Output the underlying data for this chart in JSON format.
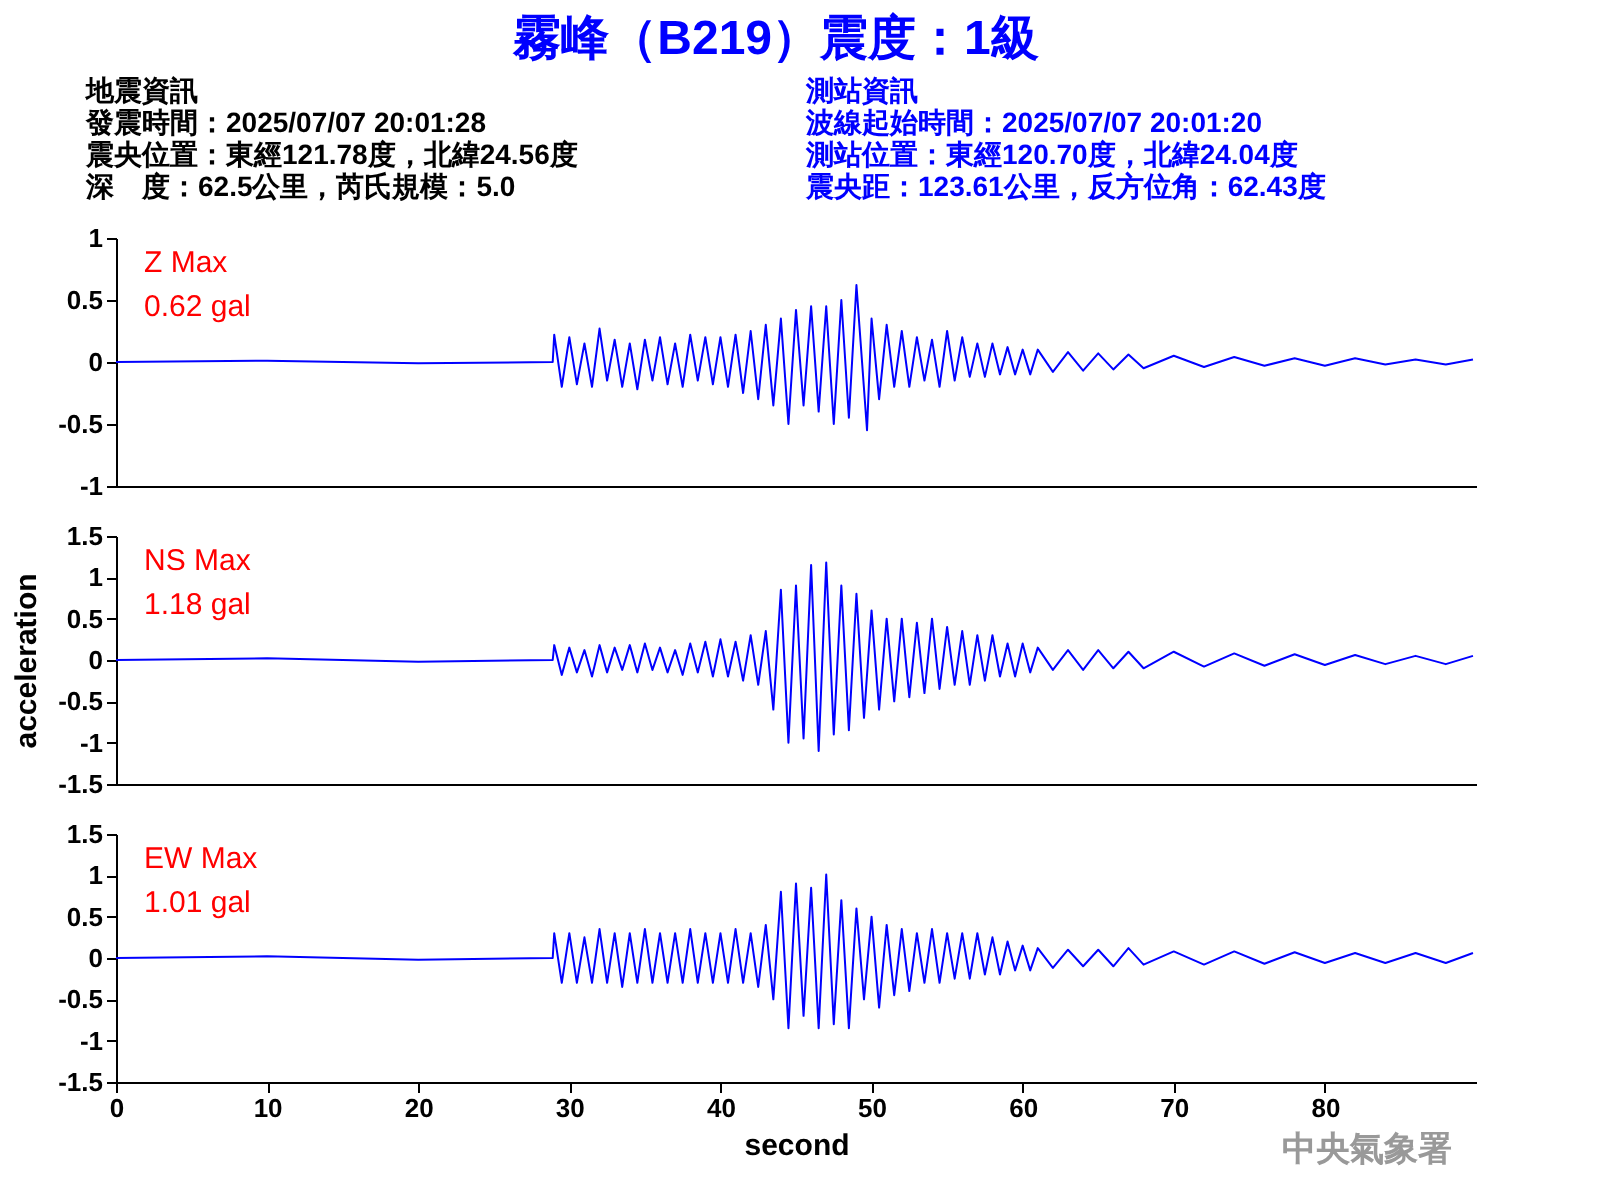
{
  "chart_data": [
    {
      "type": "other",
      "title": "霧峰（B219）震度：1級",
      "annotations": [
        "地震資訊",
        "發震時間：2025/07/07 20:01:28",
        "震央位置：東經121.78度，北緯24.56度",
        "深　度：62.5公里，芮氏規模：5.0",
        "測站資訊",
        "波線起始時間：2025/07/07 20:01:20",
        "測站位置：東經120.70度，北緯24.04度",
        "震央距：123.61公里，反方位角：62.43度"
      ]
    },
    {
      "type": "line",
      "annotations": [
        "Z Max",
        "0.62 gal"
      ],
      "xlim": [
        0,
        90
      ],
      "ylim": [
        -1,
        1
      ],
      "yticks": [
        -1,
        -0.5,
        0,
        0.5,
        1
      ],
      "tick_labels": "y",
      "grid": false,
      "x": [
        0,
        10,
        20,
        28.9,
        29,
        29.5,
        30,
        30.5,
        31,
        31.5,
        32,
        32.5,
        33,
        33.5,
        34,
        34.5,
        35,
        35.5,
        36,
        36.5,
        37,
        37.5,
        38,
        38.5,
        39,
        39.5,
        40,
        40.5,
        41,
        41.5,
        42,
        42.5,
        43,
        43.5,
        44,
        44.5,
        45,
        45.5,
        46,
        46.5,
        47,
        47.5,
        48,
        48.5,
        49,
        49.7,
        50,
        50.5,
        51,
        51.5,
        52,
        52.5,
        53,
        53.5,
        54,
        54.5,
        55,
        55.5,
        56,
        56.5,
        57,
        57.5,
        58,
        58.5,
        59,
        59.5,
        60,
        60.5,
        61,
        62,
        63,
        64,
        65,
        66,
        67,
        68,
        70,
        72,
        74,
        76,
        78,
        80,
        82,
        84,
        86,
        88,
        89.8
      ],
      "series": [
        {
          "color": "#0000ff",
          "values": [
            0,
            0.01,
            -0.01,
            0,
            0.22,
            -0.2,
            0.2,
            -0.18,
            0.15,
            -0.2,
            0.27,
            -0.15,
            0.18,
            -0.2,
            0.15,
            -0.22,
            0.18,
            -0.15,
            0.2,
            -0.18,
            0.15,
            -0.2,
            0.22,
            -0.15,
            0.2,
            -0.18,
            0.2,
            -0.2,
            0.22,
            -0.25,
            0.25,
            -0.3,
            0.3,
            -0.35,
            0.35,
            -0.5,
            0.42,
            -0.35,
            0.45,
            -0.4,
            0.45,
            -0.5,
            0.5,
            -0.45,
            0.62,
            -0.55,
            0.35,
            -0.3,
            0.3,
            -0.2,
            0.25,
            -0.2,
            0.2,
            -0.15,
            0.18,
            -0.2,
            0.25,
            -0.15,
            0.2,
            -0.12,
            0.15,
            -0.12,
            0.15,
            -0.1,
            0.12,
            -0.1,
            0.1,
            -0.1,
            0.1,
            -0.08,
            0.08,
            -0.07,
            0.07,
            -0.06,
            0.06,
            -0.05,
            0.05,
            -0.04,
            0.04,
            -0.03,
            0.03,
            -0.03,
            0.03,
            -0.02,
            0.02,
            -0.02,
            0.02
          ]
        }
      ]
    },
    {
      "type": "line",
      "ylabel": "acceleration",
      "annotations": [
        "NS Max",
        "1.18 gal"
      ],
      "xlim": [
        0,
        90
      ],
      "ylim": [
        -1.5,
        1.5
      ],
      "yticks": [
        -1.5,
        -1,
        -0.5,
        0,
        0.5,
        1,
        1.5
      ],
      "tick_labels": "y",
      "grid": false,
      "x": [
        0,
        10,
        20,
        28.9,
        29,
        29.5,
        30,
        30.5,
        31,
        31.5,
        32,
        32.5,
        33,
        33.5,
        34,
        34.5,
        35,
        35.5,
        36,
        36.5,
        37,
        37.5,
        38,
        38.5,
        39,
        39.5,
        40,
        40.5,
        41,
        41.5,
        42,
        42.5,
        43,
        43.5,
        44,
        44.5,
        45,
        45.5,
        46,
        46.5,
        47,
        47.5,
        48,
        48.5,
        49,
        49.5,
        50,
        50.5,
        51,
        51.5,
        52,
        52.5,
        53,
        53.5,
        54,
        54.5,
        55,
        55.5,
        56,
        56.5,
        57,
        57.5,
        58,
        58.5,
        59,
        59.5,
        60,
        60.5,
        61,
        62,
        63,
        64,
        65,
        66,
        67,
        68,
        70,
        72,
        74,
        76,
        78,
        80,
        82,
        84,
        86,
        88,
        89.8
      ],
      "series": [
        {
          "color": "#0000ff",
          "values": [
            0,
            0.02,
            -0.02,
            0,
            0.18,
            -0.18,
            0.15,
            -0.15,
            0.12,
            -0.2,
            0.18,
            -0.15,
            0.15,
            -0.12,
            0.18,
            -0.15,
            0.2,
            -0.12,
            0.15,
            -0.15,
            0.12,
            -0.18,
            0.2,
            -0.15,
            0.22,
            -0.2,
            0.25,
            -0.2,
            0.22,
            -0.25,
            0.3,
            -0.3,
            0.35,
            -0.6,
            0.85,
            -1.0,
            0.9,
            -0.95,
            1.15,
            -1.1,
            1.18,
            -0.9,
            0.9,
            -0.85,
            0.8,
            -0.7,
            0.6,
            -0.6,
            0.5,
            -0.5,
            0.5,
            -0.45,
            0.45,
            -0.4,
            0.5,
            -0.35,
            0.4,
            -0.3,
            0.35,
            -0.3,
            0.3,
            -0.25,
            0.3,
            -0.2,
            0.2,
            -0.2,
            0.2,
            -0.15,
            0.15,
            -0.12,
            0.12,
            -0.12,
            0.12,
            -0.1,
            0.1,
            -0.1,
            0.1,
            -0.08,
            0.08,
            -0.07,
            0.07,
            -0.06,
            0.06,
            -0.05,
            0.05,
            -0.05,
            0.05
          ]
        }
      ]
    },
    {
      "type": "line",
      "xlabel": "second",
      "annotations": [
        "EW Max",
        "1.01 gal",
        "中央氣象署"
      ],
      "xlim": [
        0,
        90
      ],
      "xticks": [
        0,
        10,
        20,
        30,
        40,
        50,
        60,
        70,
        80
      ],
      "ylim": [
        -1.5,
        1.5
      ],
      "yticks": [
        -1.5,
        -1,
        -0.5,
        0,
        0.5,
        1,
        1.5
      ],
      "grid": false,
      "x": [
        0,
        10,
        20,
        28.9,
        29,
        29.5,
        30,
        30.5,
        31,
        31.5,
        32,
        32.5,
        33,
        33.5,
        34,
        34.5,
        35,
        35.5,
        36,
        36.5,
        37,
        37.5,
        38,
        38.5,
        39,
        39.5,
        40,
        40.5,
        41,
        41.5,
        42,
        42.5,
        43,
        43.5,
        44,
        44.5,
        45,
        45.5,
        46,
        46.5,
        47,
        47.5,
        48,
        48.5,
        49,
        49.5,
        50,
        50.5,
        51,
        51.5,
        52,
        52.5,
        53,
        53.5,
        54,
        54.5,
        55,
        55.5,
        56,
        56.5,
        57,
        57.5,
        58,
        58.5,
        59,
        59.5,
        60,
        60.5,
        61,
        62,
        63,
        64,
        65,
        66,
        67,
        68,
        70,
        72,
        74,
        76,
        78,
        80,
        82,
        84,
        86,
        88,
        89.8
      ],
      "series": [
        {
          "color": "#0000ff",
          "values": [
            0,
            0.02,
            -0.02,
            0,
            0.3,
            -0.3,
            0.3,
            -0.3,
            0.25,
            -0.3,
            0.35,
            -0.3,
            0.3,
            -0.35,
            0.3,
            -0.3,
            0.35,
            -0.3,
            0.3,
            -0.3,
            0.3,
            -0.3,
            0.35,
            -0.3,
            0.3,
            -0.3,
            0.3,
            -0.3,
            0.35,
            -0.3,
            0.3,
            -0.35,
            0.4,
            -0.5,
            0.8,
            -0.85,
            0.9,
            -0.7,
            0.85,
            -0.85,
            1.01,
            -0.8,
            0.7,
            -0.85,
            0.6,
            -0.5,
            0.5,
            -0.6,
            0.4,
            -0.45,
            0.35,
            -0.4,
            0.3,
            -0.3,
            0.35,
            -0.3,
            0.3,
            -0.25,
            0.3,
            -0.25,
            0.3,
            -0.2,
            0.25,
            -0.2,
            0.2,
            -0.15,
            0.15,
            -0.15,
            0.12,
            -0.12,
            0.1,
            -0.1,
            0.1,
            -0.1,
            0.12,
            -0.08,
            0.08,
            -0.08,
            0.08,
            -0.07,
            0.07,
            -0.06,
            0.06,
            -0.06,
            0.06,
            -0.06,
            0.06
          ]
        }
      ]
    }
  ]
}
